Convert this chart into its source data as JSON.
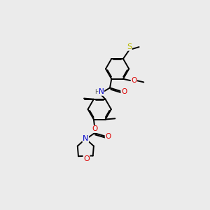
{
  "bg_color": "#ebebeb",
  "bond_color": "#000000",
  "atom_colors": {
    "S": "#b8b800",
    "O": "#dd0000",
    "N": "#0000cc",
    "H": "#606060",
    "C": "#000000"
  },
  "lw": 1.4,
  "dbo": 0.06,
  "fs": 7.5
}
